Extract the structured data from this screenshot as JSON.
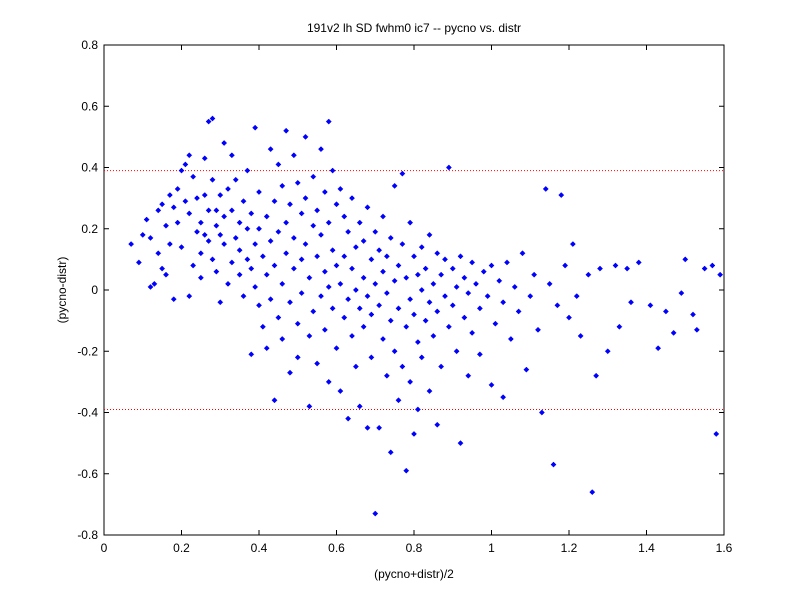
{
  "chart_data": {
    "type": "scatter",
    "title": "191v2 lh SD fwhm0 ic7 -- pycno vs. distr",
    "xlabel": "(pycno+distr)/2",
    "ylabel": "(pycno-distr)",
    "xlim": [
      0,
      1.6
    ],
    "ylim": [
      -0.8,
      0.8
    ],
    "xticks": [
      "0",
      "0.2",
      "0.4",
      "0.6",
      "0.8",
      "1",
      "1.2",
      "1.4",
      "1.6"
    ],
    "yticks": [
      "0.8",
      "0.6",
      "0.4",
      "0.2",
      "0",
      "-0.2",
      "-0.4",
      "-0.6",
      "-0.8"
    ],
    "grid": false,
    "reference_lines": [
      {
        "y": 0.39,
        "style": "dotted",
        "color": "#ff0000"
      },
      {
        "y": -0.39,
        "style": "dotted",
        "color": "#ff0000"
      }
    ],
    "series": [
      {
        "color": "#0000ff",
        "marker": "diamond",
        "points": [
          [
            0.07,
            0.15
          ],
          [
            0.09,
            0.09
          ],
          [
            0.1,
            0.18
          ],
          [
            0.11,
            0.23
          ],
          [
            0.12,
            0.17
          ],
          [
            0.12,
            0.01
          ],
          [
            0.13,
            0.02
          ],
          [
            0.14,
            0.26
          ],
          [
            0.14,
            0.12
          ],
          [
            0.15,
            0.28
          ],
          [
            0.15,
            0.07
          ],
          [
            0.16,
            0.21
          ],
          [
            0.16,
            0.05
          ],
          [
            0.17,
            0.31
          ],
          [
            0.17,
            0.15
          ],
          [
            0.18,
            0.27
          ],
          [
            0.18,
            -0.03
          ],
          [
            0.19,
            0.33
          ],
          [
            0.19,
            0.22
          ],
          [
            0.2,
            0.39
          ],
          [
            0.2,
            0.14
          ],
          [
            0.21,
            0.41
          ],
          [
            0.21,
            0.29
          ],
          [
            0.22,
            0.44
          ],
          [
            0.22,
            0.25
          ],
          [
            0.22,
            -0.02
          ],
          [
            0.23,
            0.08
          ],
          [
            0.23,
            0.37
          ],
          [
            0.24,
            0.3
          ],
          [
            0.24,
            0.19
          ],
          [
            0.25,
            0.22
          ],
          [
            0.25,
            0.04
          ],
          [
            0.25,
            0.12
          ],
          [
            0.26,
            0.18
          ],
          [
            0.26,
            0.31
          ],
          [
            0.26,
            0.43
          ],
          [
            0.27,
            0.55
          ],
          [
            0.27,
            0.16
          ],
          [
            0.27,
            0.26
          ],
          [
            0.28,
            0.56
          ],
          [
            0.28,
            0.36
          ],
          [
            0.28,
            0.1
          ],
          [
            0.29,
            0.21
          ],
          [
            0.29,
            0.26
          ],
          [
            0.29,
            0.06
          ],
          [
            0.3,
            0.31
          ],
          [
            0.3,
            0.18
          ],
          [
            0.3,
            -0.04
          ],
          [
            0.31,
            0.48
          ],
          [
            0.31,
            0.24
          ],
          [
            0.31,
            0.15
          ],
          [
            0.32,
            0.33
          ],
          [
            0.32,
            0.02
          ],
          [
            0.33,
            0.44
          ],
          [
            0.33,
            0.26
          ],
          [
            0.33,
            0.09
          ],
          [
            0.34,
            0.17
          ],
          [
            0.34,
            0.36
          ],
          [
            0.35,
            0.22
          ],
          [
            0.35,
            0.05
          ],
          [
            0.35,
            0.13
          ],
          [
            0.36,
            0.29
          ],
          [
            0.36,
            -0.02
          ],
          [
            0.37,
            0.39
          ],
          [
            0.37,
            0.2
          ],
          [
            0.37,
            0.1
          ],
          [
            0.38,
            0.25
          ],
          [
            0.38,
            -0.21
          ],
          [
            0.38,
            0.07
          ],
          [
            0.39,
            0.53
          ],
          [
            0.39,
            0.15
          ],
          [
            0.39,
            0.01
          ],
          [
            0.4,
            0.32
          ],
          [
            0.4,
            -0.05
          ],
          [
            0.4,
            0.2
          ],
          [
            0.41,
            0.11
          ],
          [
            0.41,
            -0.12
          ],
          [
            0.42,
            0.24
          ],
          [
            0.42,
            0.05
          ],
          [
            0.42,
            -0.19
          ],
          [
            0.43,
            0.46
          ],
          [
            0.43,
            0.16
          ],
          [
            0.43,
            -0.03
          ],
          [
            0.44,
            -0.36
          ],
          [
            0.44,
            0.29
          ],
          [
            0.44,
            0.08
          ],
          [
            0.45,
            0.41
          ],
          [
            0.45,
            0.19
          ],
          [
            0.45,
            -0.09
          ],
          [
            0.46,
            0.34
          ],
          [
            0.46,
            0.02
          ],
          [
            0.46,
            -0.16
          ],
          [
            0.47,
            0.52
          ],
          [
            0.47,
            0.22
          ],
          [
            0.47,
            0.12
          ],
          [
            0.48,
            0.28
          ],
          [
            0.48,
            -0.04
          ],
          [
            0.48,
            -0.27
          ],
          [
            0.49,
            0.44
          ],
          [
            0.49,
            0.17
          ],
          [
            0.49,
            0.07
          ],
          [
            0.5,
            0.35
          ],
          [
            0.5,
            -0.11
          ],
          [
            0.5,
            -0.22
          ],
          [
            0.51,
            0.25
          ],
          [
            0.51,
            0.1
          ],
          [
            0.51,
            -0.01
          ],
          [
            0.52,
            0.5
          ],
          [
            0.52,
            0.3
          ],
          [
            0.52,
            0.15
          ],
          [
            0.53,
            0.04
          ],
          [
            0.53,
            -0.15
          ],
          [
            0.53,
            -0.38
          ],
          [
            0.54,
            0.37
          ],
          [
            0.54,
            0.21
          ],
          [
            0.54,
            -0.07
          ],
          [
            0.55,
            0.26
          ],
          [
            0.55,
            0.11
          ],
          [
            0.55,
            -0.24
          ],
          [
            0.56,
            0.46
          ],
          [
            0.56,
            0.18
          ],
          [
            0.56,
            -0.02
          ],
          [
            0.57,
            0.32
          ],
          [
            0.57,
            0.06
          ],
          [
            0.57,
            -0.13
          ],
          [
            0.58,
            0.55
          ],
          [
            0.58,
            0.22
          ],
          [
            0.58,
            0.01
          ],
          [
            0.58,
            -0.3
          ],
          [
            0.59,
            0.39
          ],
          [
            0.59,
            0.13
          ],
          [
            0.59,
            -0.06
          ],
          [
            0.6,
            0.28
          ],
          [
            0.6,
            0.08
          ],
          [
            0.6,
            -0.19
          ],
          [
            0.61,
            0.33
          ],
          [
            0.61,
            0.02
          ],
          [
            0.61,
            -0.33
          ],
          [
            0.62,
            0.24
          ],
          [
            0.62,
            0.11
          ],
          [
            0.62,
            -0.09
          ],
          [
            0.63,
            0.19
          ],
          [
            0.63,
            -0.03
          ],
          [
            0.63,
            -0.42
          ],
          [
            0.64,
            0.3
          ],
          [
            0.64,
            0.07
          ],
          [
            0.64,
            -0.15
          ],
          [
            0.65,
            0.14
          ],
          [
            0.65,
            0.0
          ],
          [
            0.65,
            -0.25
          ],
          [
            0.66,
            0.22
          ],
          [
            0.66,
            -0.06
          ],
          [
            0.66,
            -0.38
          ],
          [
            0.67,
            0.16
          ],
          [
            0.67,
            0.04
          ],
          [
            0.67,
            -0.12
          ],
          [
            0.68,
            0.27
          ],
          [
            0.68,
            -0.02
          ],
          [
            0.68,
            -0.45
          ],
          [
            0.69,
            0.1
          ],
          [
            0.69,
            -0.08
          ],
          [
            0.69,
            -0.22
          ],
          [
            0.7,
            0.19
          ],
          [
            0.7,
            0.02
          ],
          [
            0.7,
            -0.73
          ],
          [
            0.71,
            0.13
          ],
          [
            0.71,
            -0.05
          ],
          [
            0.71,
            -0.45
          ],
          [
            0.72,
            0.24
          ],
          [
            0.72,
            0.06
          ],
          [
            0.72,
            -0.16
          ],
          [
            0.73,
            0.11
          ],
          [
            0.73,
            -0.01
          ],
          [
            0.73,
            -0.28
          ],
          [
            0.74,
            0.17
          ],
          [
            0.74,
            -0.1
          ],
          [
            0.74,
            -0.53
          ],
          [
            0.75,
            0.34
          ],
          [
            0.75,
            0.03
          ],
          [
            0.75,
            -0.2
          ],
          [
            0.76,
            0.08
          ],
          [
            0.76,
            -0.06
          ],
          [
            0.76,
            -0.36
          ],
          [
            0.77,
            0.38
          ],
          [
            0.77,
            0.15
          ],
          [
            0.77,
            -0.25
          ],
          [
            0.78,
            0.04
          ],
          [
            0.78,
            -0.12
          ],
          [
            0.78,
            -0.59
          ],
          [
            0.79,
            0.22
          ],
          [
            0.79,
            -0.03
          ],
          [
            0.79,
            -0.3
          ],
          [
            0.8,
            0.11
          ],
          [
            0.8,
            -0.08
          ],
          [
            0.8,
            -0.47
          ],
          [
            0.81,
            0.05
          ],
          [
            0.81,
            -0.17
          ],
          [
            0.81,
            -0.39
          ],
          [
            0.82,
            0.14
          ],
          [
            0.82,
            0.0
          ],
          [
            0.82,
            -0.22
          ],
          [
            0.83,
            0.07
          ],
          [
            0.83,
            -0.1
          ],
          [
            0.84,
            0.18
          ],
          [
            0.84,
            -0.04
          ],
          [
            0.84,
            -0.33
          ],
          [
            0.85,
            0.02
          ],
          [
            0.85,
            -0.15
          ],
          [
            0.86,
            0.12
          ],
          [
            0.86,
            -0.07
          ],
          [
            0.86,
            -0.44
          ],
          [
            0.87,
            0.05
          ],
          [
            0.87,
            -0.25
          ],
          [
            0.88,
            0.1
          ],
          [
            0.88,
            -0.02
          ],
          [
            0.89,
            0.4
          ],
          [
            0.89,
            -0.12
          ],
          [
            0.9,
            0.07
          ],
          [
            0.9,
            -0.05
          ],
          [
            0.91,
            0.01
          ],
          [
            0.91,
            -0.2
          ],
          [
            0.92,
            0.11
          ],
          [
            0.92,
            -0.5
          ],
          [
            0.93,
            0.04
          ],
          [
            0.93,
            -0.09
          ],
          [
            0.94,
            -0.01
          ],
          [
            0.94,
            -0.28
          ],
          [
            0.95,
            0.09
          ],
          [
            0.95,
            -0.14
          ],
          [
            0.96,
            0.02
          ],
          [
            0.97,
            -0.06
          ],
          [
            0.97,
            -0.21
          ],
          [
            0.98,
            0.06
          ],
          [
            0.99,
            -0.02
          ],
          [
            1.0,
            0.08
          ],
          [
            1.0,
            -0.31
          ],
          [
            1.01,
            -0.11
          ],
          [
            1.02,
            0.03
          ],
          [
            1.03,
            -0.04
          ],
          [
            1.03,
            -0.35
          ],
          [
            1.04,
            0.09
          ],
          [
            1.05,
            -0.16
          ],
          [
            1.06,
            0.01
          ],
          [
            1.07,
            -0.07
          ],
          [
            1.08,
            0.12
          ],
          [
            1.09,
            -0.26
          ],
          [
            1.1,
            -0.02
          ],
          [
            1.11,
            0.05
          ],
          [
            1.12,
            -0.13
          ],
          [
            1.13,
            -0.4
          ],
          [
            1.14,
            0.33
          ],
          [
            1.15,
            0.02
          ],
          [
            1.16,
            -0.57
          ],
          [
            1.17,
            -0.05
          ],
          [
            1.18,
            0.31
          ],
          [
            1.19,
            0.08
          ],
          [
            1.2,
            -0.09
          ],
          [
            1.21,
            0.15
          ],
          [
            1.22,
            -0.02
          ],
          [
            1.23,
            -0.15
          ],
          [
            1.25,
            0.05
          ],
          [
            1.26,
            -0.66
          ],
          [
            1.27,
            -0.28
          ],
          [
            1.28,
            0.07
          ],
          [
            1.3,
            -0.2
          ],
          [
            1.32,
            0.08
          ],
          [
            1.33,
            -0.12
          ],
          [
            1.35,
            0.07
          ],
          [
            1.36,
            -0.04
          ],
          [
            1.38,
            0.09
          ],
          [
            1.41,
            -0.05
          ],
          [
            1.43,
            -0.19
          ],
          [
            1.45,
            -0.07
          ],
          [
            1.47,
            -0.14
          ],
          [
            1.49,
            -0.01
          ],
          [
            1.5,
            0.1
          ],
          [
            1.52,
            -0.08
          ],
          [
            1.53,
            -0.13
          ],
          [
            1.55,
            0.07
          ],
          [
            1.57,
            0.08
          ],
          [
            1.58,
            -0.47
          ],
          [
            1.59,
            0.05
          ]
        ]
      }
    ]
  }
}
